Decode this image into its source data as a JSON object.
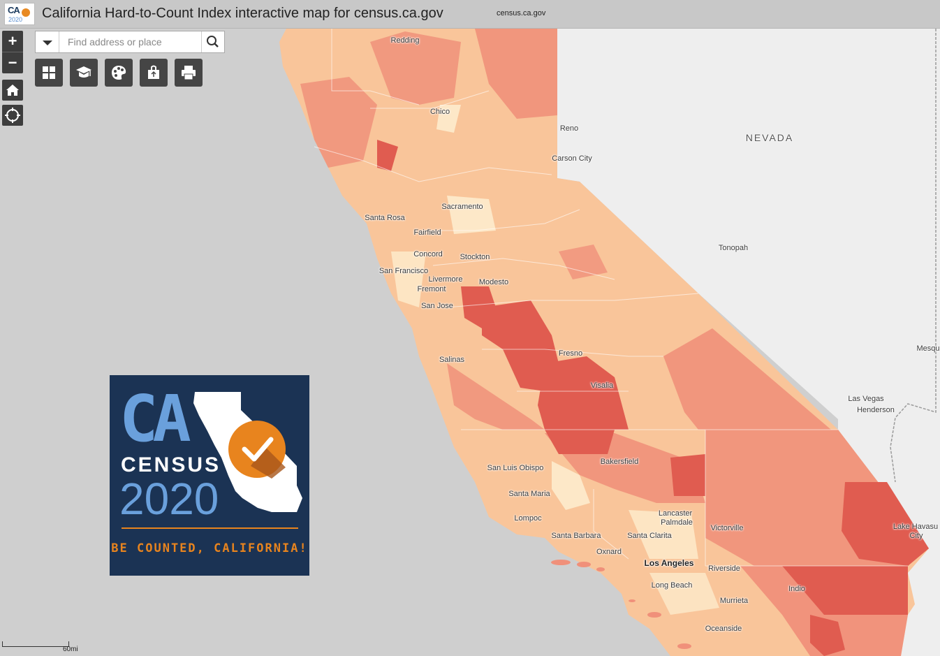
{
  "header": {
    "logo_ca": "CA",
    "logo_year": "2020",
    "title": "California Hard-to-Count Index interactive map for census.ca.gov",
    "subtitle": "census.ca.gov"
  },
  "map_controls": {
    "zoom_in": "+",
    "zoom_out": "−"
  },
  "search": {
    "placeholder": "Find address or place"
  },
  "toolbar": [
    {
      "icon": "basemap-gallery-icon"
    },
    {
      "icon": "legend-icon"
    },
    {
      "icon": "layer-list-icon"
    },
    {
      "icon": "share-icon"
    },
    {
      "icon": "print-icon"
    }
  ],
  "map_labels": {
    "redding": "Redding",
    "chico": "Chico",
    "reno": "Reno",
    "nevada": "NEVADA",
    "carson_city": "Carson City",
    "sacramento": "Sacramento",
    "santa_rosa": "Santa Rosa",
    "fairfield": "Fairfield",
    "tonopah": "Tonopah",
    "concord": "Concord",
    "stockton": "Stockton",
    "san_francisco": "San Francisco",
    "livermore": "Livermore",
    "fremont": "Fremont",
    "modesto": "Modesto",
    "san_jose": "San Jose",
    "fresno": "Fresno",
    "mesquite": "Mesqu",
    "salinas": "Salinas",
    "visalia": "Visalia",
    "las_vegas": "Las Vegas",
    "henderson": "Henderson",
    "bakersfield": "Bakersfield",
    "san_luis_obispo": "San Luis Obispo",
    "santa_maria": "Santa Maria",
    "lompoc": "Lompoc",
    "lancaster": "Lancaster",
    "palmdale": "Palmdale",
    "lake_havasu": "Lake Havasu",
    "city": "City",
    "victorville": "Victorville",
    "santa_barbara": "Santa Barbara",
    "santa_clarita": "Santa Clarita",
    "oxnard": "Oxnard",
    "los_angeles": "Los Angeles",
    "riverside": "Riverside",
    "long_beach": "Long Beach",
    "indio": "Indio",
    "murrieta": "Murrieta",
    "oceanside": "Oceanside"
  },
  "badge": {
    "ca": "CA",
    "census": "CENSUS",
    "year": "2020",
    "tagline": "BE COUNTED, CALIFORNIA!"
  },
  "scale": {
    "label": "60mi"
  },
  "colors": {
    "ocean": "#cfcfcf",
    "land": "#eeeeee",
    "htc_low": "#fde8c8",
    "htc_mid": "#f9c59a",
    "htc_high": "#f0907a",
    "htc_very_high": "#e05c50",
    "badge_navy": "#1b3354",
    "badge_blue": "#6aa0dc",
    "badge_orange": "#e8841e"
  }
}
